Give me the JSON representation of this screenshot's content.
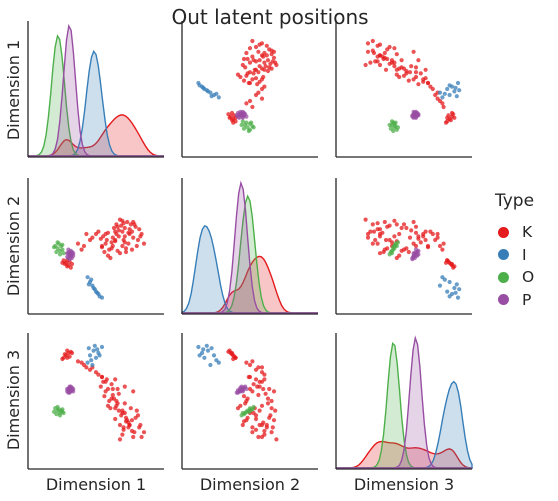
{
  "chart_data": {
    "type": "scatter",
    "title": "Out latent positions",
    "variables": [
      "Dimension 1",
      "Dimension 2",
      "Dimension 3"
    ],
    "legend": {
      "title": "Type",
      "placement": "right",
      "entries": [
        {
          "label": "K",
          "color": "#e41a1c"
        },
        {
          "label": "I",
          "color": "#377eb8"
        },
        {
          "label": "O",
          "color": "#4daf4a"
        },
        {
          "label": "P",
          "color": "#984ea3"
        }
      ]
    },
    "diagonal": "kde",
    "off_diagonal": "scatter",
    "grid": false,
    "tick_labels": "none",
    "series": [
      {
        "name": "K",
        "color": "#e41a1c",
        "points": [
          [
            0.72,
            0.62,
            0.22
          ],
          [
            0.69,
            0.58,
            0.42
          ],
          [
            0.74,
            0.65,
            0.48
          ],
          [
            0.66,
            0.55,
            0.35
          ],
          [
            0.78,
            0.6,
            0.3
          ],
          [
            0.81,
            0.7,
            0.58
          ],
          [
            0.63,
            0.48,
            0.52
          ],
          [
            0.58,
            0.6,
            0.66
          ],
          [
            0.77,
            0.52,
            0.28
          ],
          [
            0.7,
            0.72,
            0.18
          ],
          [
            0.85,
            0.55,
            0.38
          ],
          [
            0.6,
            0.42,
            0.46
          ],
          [
            0.68,
            0.66,
            0.6
          ],
          [
            0.55,
            0.5,
            0.7
          ],
          [
            0.75,
            0.45,
            0.33
          ],
          [
            0.8,
            0.62,
            0.25
          ],
          [
            0.64,
            0.57,
            0.55
          ],
          [
            0.72,
            0.5,
            0.4
          ],
          [
            0.88,
            0.6,
            0.2
          ],
          [
            0.67,
            0.68,
            0.5
          ],
          [
            0.5,
            0.6,
            0.74
          ],
          [
            0.62,
            0.4,
            0.44
          ],
          [
            0.83,
            0.66,
            0.36
          ],
          [
            0.74,
            0.58,
            0.62
          ],
          [
            0.58,
            0.52,
            0.58
          ],
          [
            0.7,
            0.44,
            0.3
          ],
          [
            0.79,
            0.68,
            0.44
          ],
          [
            0.66,
            0.62,
            0.68
          ],
          [
            0.9,
            0.52,
            0.24
          ],
          [
            0.54,
            0.56,
            0.62
          ],
          [
            0.76,
            0.7,
            0.34
          ],
          [
            0.61,
            0.47,
            0.5
          ],
          [
            0.73,
            0.55,
            0.26
          ],
          [
            0.69,
            0.63,
            0.56
          ],
          [
            0.84,
            0.5,
            0.42
          ],
          [
            0.47,
            0.57,
            0.78
          ],
          [
            0.78,
            0.64,
            0.3
          ],
          [
            0.63,
            0.53,
            0.64
          ],
          [
            0.71,
            0.67,
            0.38
          ],
          [
            0.57,
            0.45,
            0.54
          ],
          [
            0.81,
            0.57,
            0.2
          ],
          [
            0.67,
            0.6,
            0.46
          ],
          [
            0.75,
            0.48,
            0.36
          ],
          [
            0.52,
            0.62,
            0.72
          ],
          [
            0.86,
            0.64,
            0.28
          ],
          [
            0.64,
            0.5,
            0.6
          ],
          [
            0.72,
            0.71,
            0.42
          ],
          [
            0.59,
            0.55,
            0.68
          ],
          [
            0.77,
            0.61,
            0.32
          ],
          [
            0.68,
            0.46,
            0.48
          ],
          [
            0.82,
            0.68,
            0.24
          ],
          [
            0.56,
            0.58,
            0.66
          ],
          [
            0.74,
            0.53,
            0.4
          ],
          [
            0.65,
            0.65,
            0.52
          ],
          [
            0.8,
            0.47,
            0.34
          ],
          [
            0.6,
            0.61,
            0.6
          ],
          [
            0.73,
            0.69,
            0.28
          ],
          [
            0.55,
            0.49,
            0.7
          ],
          [
            0.87,
            0.58,
            0.3
          ],
          [
            0.66,
            0.54,
            0.44
          ],
          [
            0.25,
            0.36,
            0.88
          ],
          [
            0.27,
            0.34,
            0.9
          ],
          [
            0.23,
            0.38,
            0.86
          ],
          [
            0.26,
            0.33,
            0.92
          ],
          [
            0.28,
            0.37,
            0.87
          ],
          [
            0.24,
            0.35,
            0.89
          ],
          [
            0.29,
            0.32,
            0.91
          ],
          [
            0.22,
            0.36,
            0.85
          ],
          [
            0.3,
            0.35,
            0.9
          ],
          [
            0.26,
            0.38,
            0.86
          ],
          [
            0.4,
            0.5,
            0.8
          ],
          [
            0.35,
            0.52,
            0.83
          ],
          [
            0.45,
            0.55,
            0.76
          ],
          [
            0.38,
            0.47,
            0.82
          ],
          [
            0.42,
            0.6,
            0.78
          ]
        ]
      },
      {
        "name": "I",
        "color": "#377eb8",
        "points": [
          [
            0.45,
            0.2,
            0.88
          ],
          [
            0.48,
            0.15,
            0.92
          ],
          [
            0.5,
            0.12,
            0.86
          ],
          [
            0.44,
            0.18,
            0.94
          ],
          [
            0.52,
            0.1,
            0.9
          ],
          [
            0.46,
            0.22,
            0.84
          ],
          [
            0.49,
            0.14,
            0.96
          ],
          [
            0.53,
            0.08,
            0.88
          ],
          [
            0.47,
            0.17,
            0.8
          ],
          [
            0.51,
            0.11,
            0.93
          ],
          [
            0.43,
            0.24,
            0.82
          ],
          [
            0.55,
            0.07,
            0.95
          ]
        ]
      },
      {
        "name": "O",
        "color": "#4daf4a",
        "points": [
          [
            0.18,
            0.48,
            0.42
          ],
          [
            0.2,
            0.46,
            0.4
          ],
          [
            0.16,
            0.5,
            0.44
          ],
          [
            0.22,
            0.47,
            0.41
          ],
          [
            0.19,
            0.52,
            0.43
          ],
          [
            0.17,
            0.45,
            0.39
          ],
          [
            0.21,
            0.5,
            0.42
          ],
          [
            0.23,
            0.44,
            0.4
          ],
          [
            0.18,
            0.53,
            0.45
          ],
          [
            0.2,
            0.43,
            0.38
          ],
          [
            0.15,
            0.49,
            0.41
          ],
          [
            0.22,
            0.51,
            0.43
          ]
        ]
      },
      {
        "name": "P",
        "color": "#984ea3",
        "points": [
          [
            0.28,
            0.42,
            0.58
          ],
          [
            0.29,
            0.44,
            0.6
          ],
          [
            0.27,
            0.4,
            0.57
          ],
          [
            0.3,
            0.43,
            0.59
          ],
          [
            0.28,
            0.45,
            0.61
          ],
          [
            0.26,
            0.41,
            0.58
          ],
          [
            0.29,
            0.46,
            0.62
          ],
          [
            0.31,
            0.42,
            0.6
          ],
          [
            0.27,
            0.44,
            0.59
          ],
          [
            0.28,
            0.39,
            0.57
          ],
          [
            0.3,
            0.45,
            0.61
          ],
          [
            0.29,
            0.41,
            0.58
          ],
          [
            0.27,
            0.47,
            0.6
          ],
          [
            0.28,
            0.43,
            0.62
          ],
          [
            0.3,
            0.4,
            0.59
          ],
          [
            0.26,
            0.44,
            0.6
          ],
          [
            0.29,
            0.42,
            0.61
          ],
          [
            0.31,
            0.44,
            0.58
          ]
        ]
      }
    ]
  }
}
